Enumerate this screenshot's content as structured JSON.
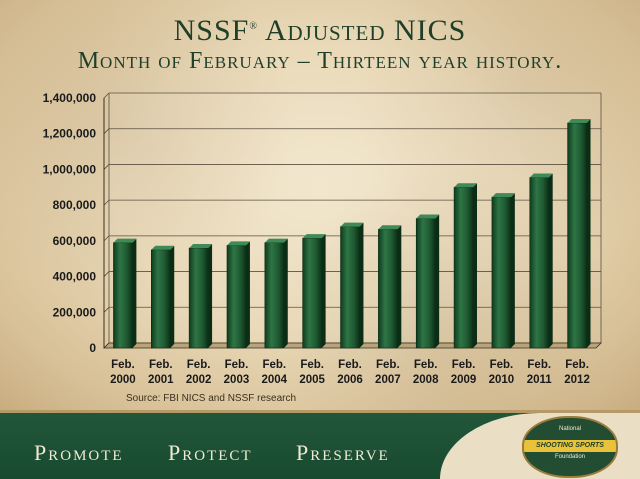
{
  "header": {
    "title_main": "NSSF",
    "title_reg": "®",
    "title_rest": " Adjusted NICS",
    "subtitle": "Month of February – Thirteen year history."
  },
  "chart_data": {
    "type": "bar",
    "categories": [
      "Feb. 2000",
      "Feb. 2001",
      "Feb. 2002",
      "Feb. 2003",
      "Feb. 2004",
      "Feb. 2005",
      "Feb. 2006",
      "Feb. 2007",
      "Feb. 2008",
      "Feb. 2009",
      "Feb. 2010",
      "Feb. 2011",
      "Feb. 2012"
    ],
    "values": [
      590000,
      550000,
      560000,
      575000,
      590000,
      615000,
      680000,
      665000,
      725000,
      900000,
      845000,
      955000,
      1260000
    ],
    "ylim": [
      0,
      1400000
    ],
    "yticks": [
      0,
      200000,
      400000,
      600000,
      800000,
      1000000,
      1200000,
      1400000
    ],
    "ytick_labels": [
      "0",
      "200,000",
      "400,000",
      "600,000",
      "800,000",
      "1,000,000",
      "1,200,000",
      "1,400,000"
    ],
    "grid": true,
    "bar_color": "#1f5a32"
  },
  "source": "Source: FBI NICS and NSSF research",
  "footer": {
    "slogans": [
      "Promote",
      "Protect",
      "Preserve"
    ],
    "logo": {
      "top": "National",
      "middle": "SHOOTING SPORTS",
      "bottom": "Foundation"
    }
  }
}
